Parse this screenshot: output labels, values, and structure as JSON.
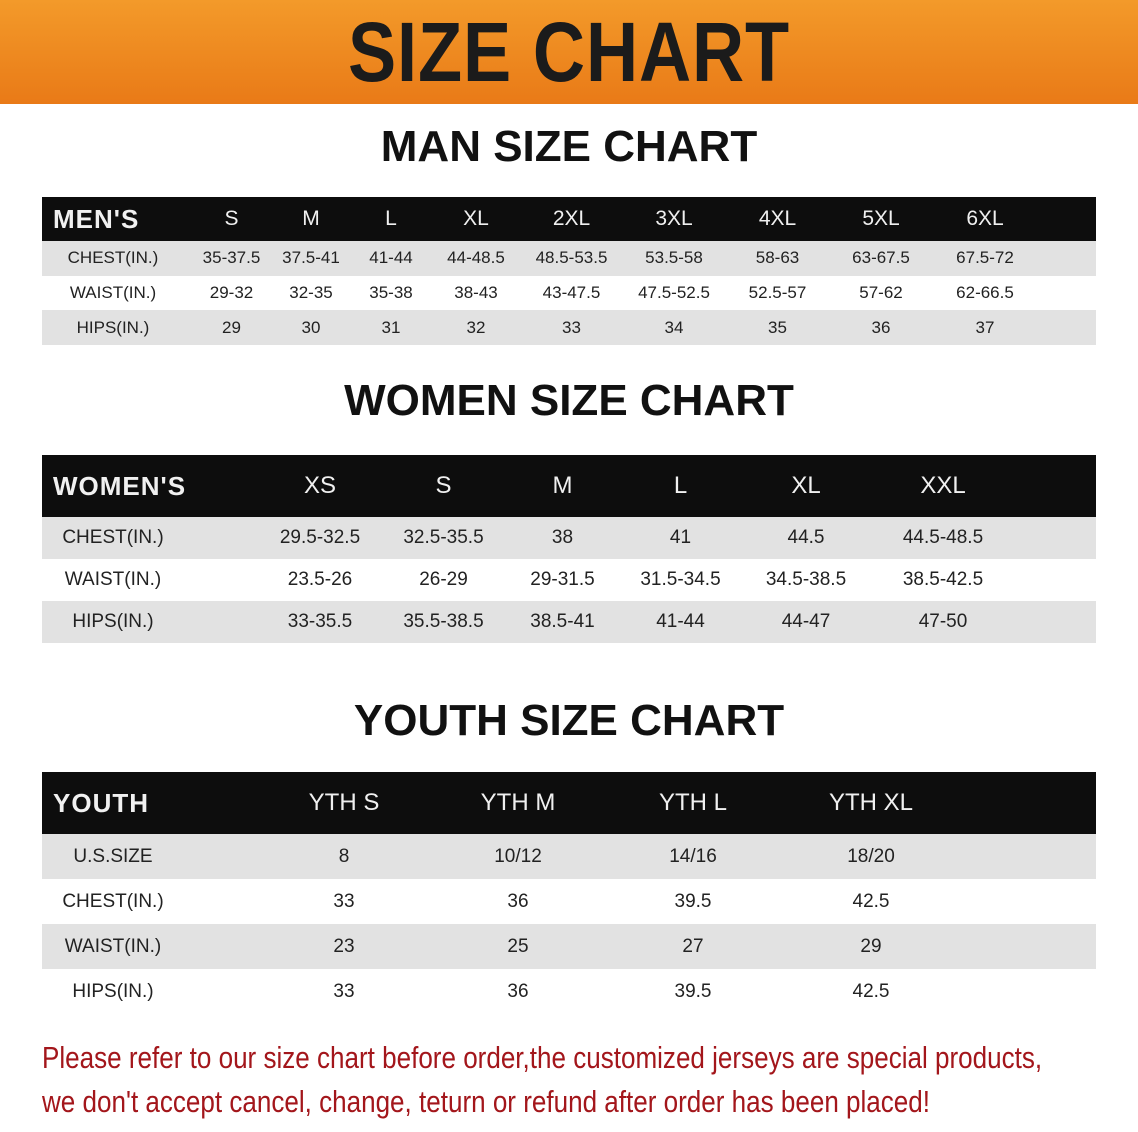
{
  "banner_title": "SIZE CHART",
  "colors": {
    "banner": "#ee8520",
    "header_row": "#0d0d0d",
    "stripe": "#e2e2e2",
    "note": "#a3161b"
  },
  "men": {
    "title": "MAN SIZE CHART",
    "header": [
      "MEN'S",
      "S",
      "M",
      "L",
      "XL",
      "2XL",
      "3XL",
      "4XL",
      "5XL",
      "6XL"
    ],
    "rows": [
      [
        "CHEST(IN.)",
        "35-37.5",
        "37.5-41",
        "41-44",
        "44-48.5",
        "48.5-53.5",
        "53.5-58",
        "58-63",
        "63-67.5",
        "67.5-72"
      ],
      [
        "WAIST(IN.)",
        "29-32",
        "32-35",
        "35-38",
        "38-43",
        "43-47.5",
        "47.5-52.5",
        "52.5-57",
        "57-62",
        "62-66.5"
      ],
      [
        "HIPS(IN.)",
        "29",
        "30",
        "31",
        "32",
        "33",
        "34",
        "35",
        "36",
        "37"
      ]
    ]
  },
  "women": {
    "title": "WOMEN SIZE CHART",
    "header": [
      "WOMEN'S",
      "XS",
      "S",
      "M",
      "L",
      "XL",
      "XXL"
    ],
    "rows": [
      [
        "CHEST(IN.)",
        "29.5-32.5",
        "32.5-35.5",
        "38",
        "41",
        "44.5",
        "44.5-48.5"
      ],
      [
        "WAIST(IN.)",
        "23.5-26",
        "26-29",
        "29-31.5",
        "31.5-34.5",
        "34.5-38.5",
        "38.5-42.5"
      ],
      [
        "HIPS(IN.)",
        "33-35.5",
        "35.5-38.5",
        "38.5-41",
        "41-44",
        "44-47",
        "47-50"
      ]
    ]
  },
  "youth": {
    "title": "YOUTH SIZE CHART",
    "header": [
      "YOUTH",
      "YTH S",
      "YTH M",
      "YTH L",
      "YTH XL"
    ],
    "rows": [
      [
        "U.S.SIZE",
        "8",
        "10/12",
        "14/16",
        "18/20"
      ],
      [
        "CHEST(IN.)",
        "33",
        "36",
        "39.5",
        "42.5"
      ],
      [
        "WAIST(IN.)",
        "23",
        "25",
        "27",
        "29"
      ],
      [
        "HIPS(IN.)",
        "33",
        "36",
        "39.5",
        "42.5"
      ]
    ]
  },
  "note": {
    "line1": "Please refer to our size chart before order,the customized jerseys are special products,",
    "line2": "we don't accept cancel, change, teturn or refund after order has been placed!"
  }
}
